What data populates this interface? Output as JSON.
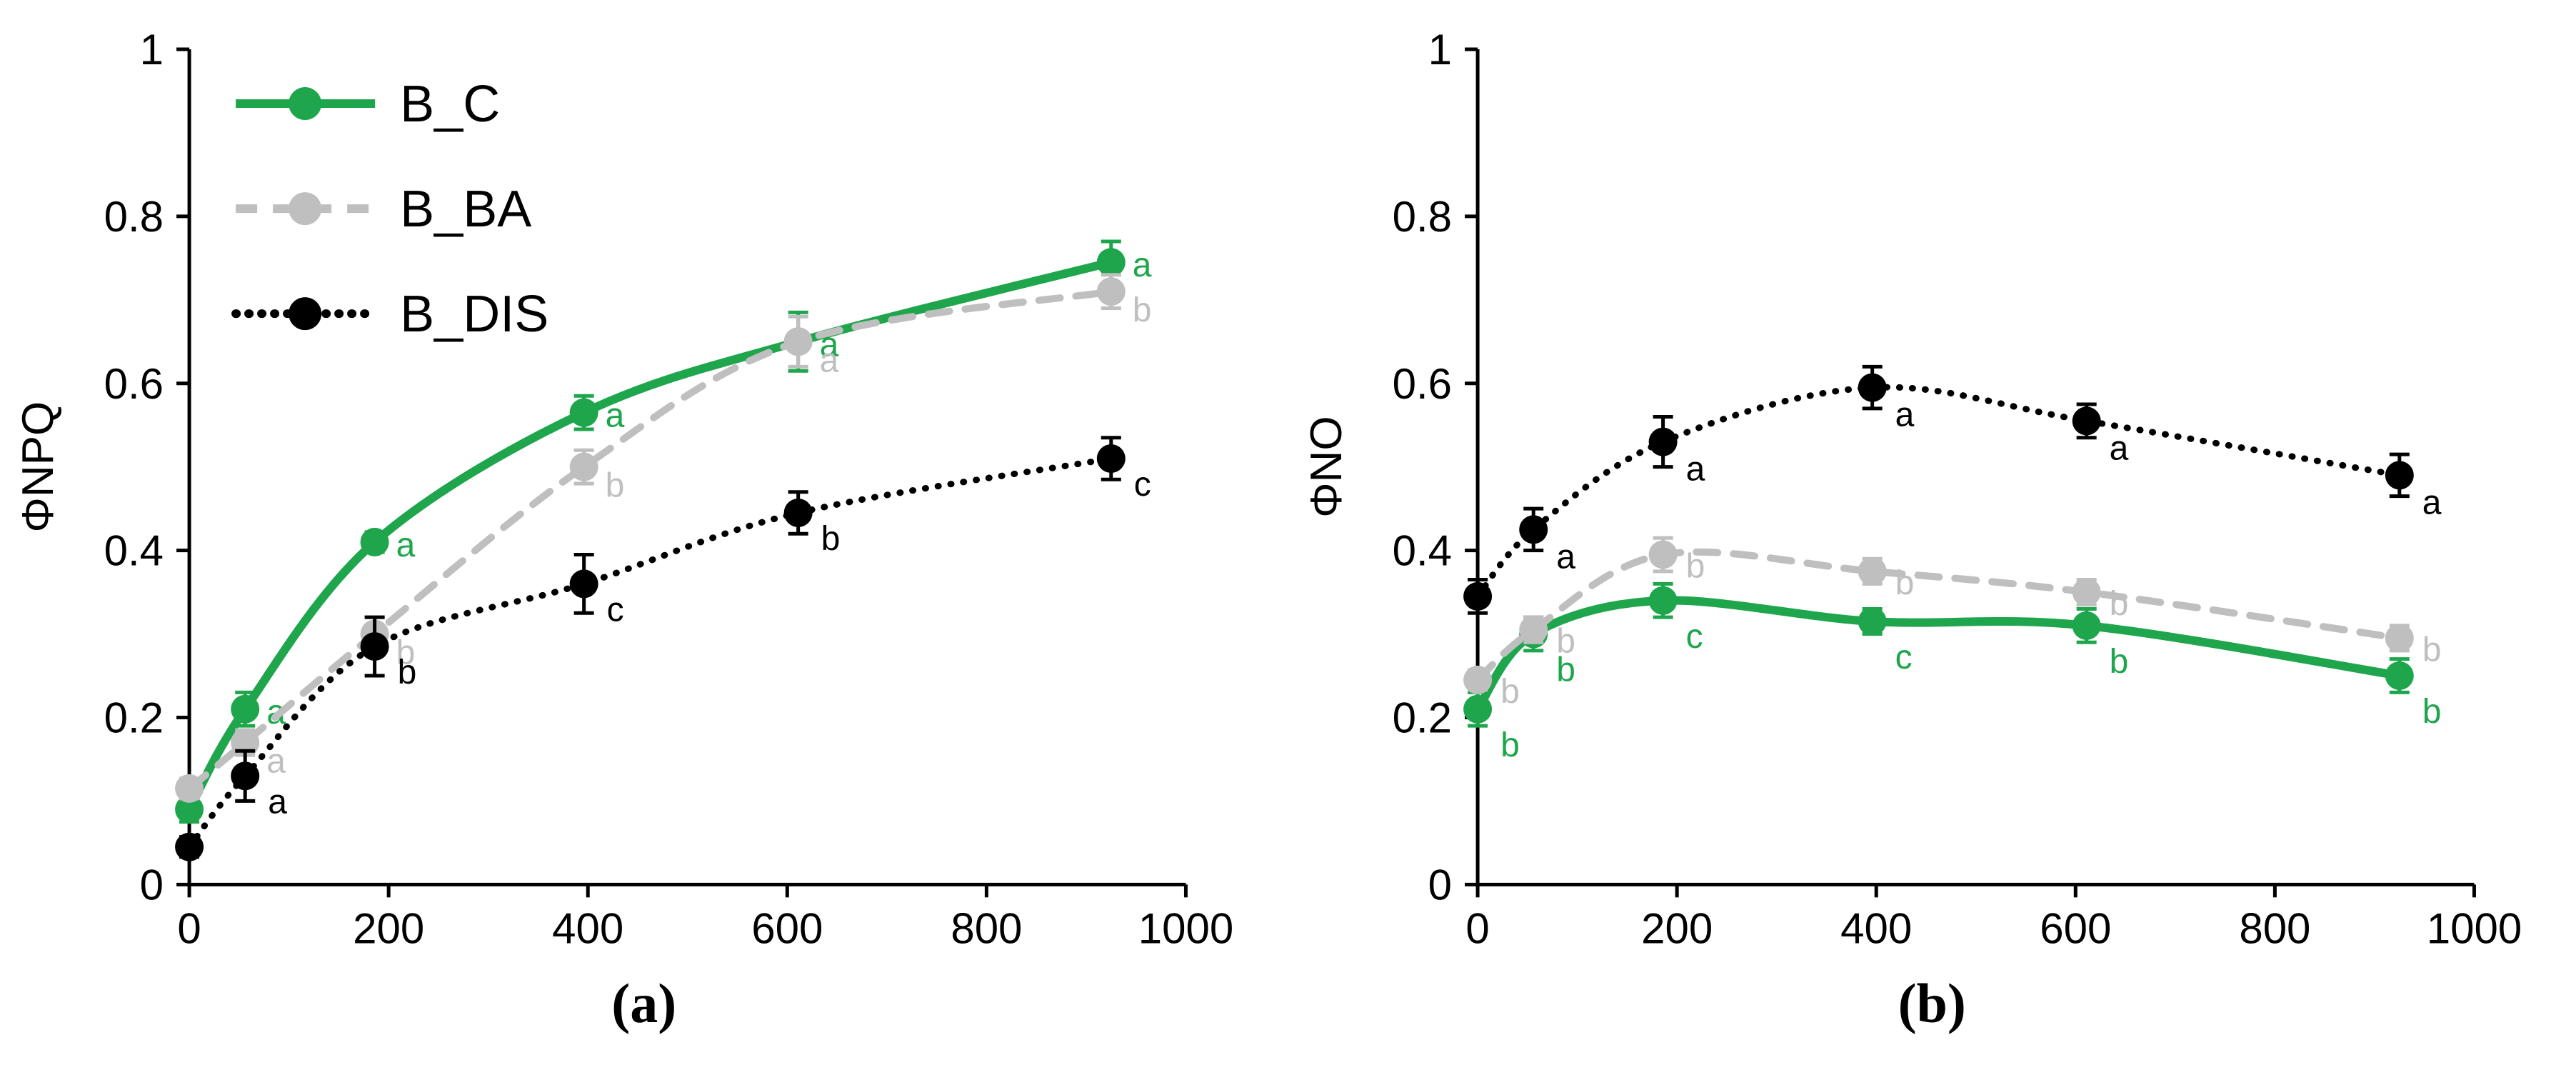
{
  "figure": {
    "background": "#ffffff",
    "axis_color": "#000000"
  },
  "chart_data": [
    {
      "id": "a",
      "caption": "(a)",
      "type": "line",
      "title": "",
      "xlabel": "",
      "ylabel": "ΦNPQ",
      "xlim": [
        0,
        1000
      ],
      "ylim": [
        0,
        1
      ],
      "xticks": [
        0,
        200,
        400,
        600,
        800,
        1000
      ],
      "yticks": [
        0,
        0.2,
        0.4,
        0.6,
        0.8,
        1
      ],
      "grid": false,
      "legend": {
        "show": true,
        "position": "top-left"
      },
      "x": [
        0,
        56,
        186,
        396,
        611,
        925
      ],
      "series": [
        {
          "name": "B_C",
          "color": "#1fa64d",
          "dash": "solid",
          "label_dx": 30,
          "label_dy": 20,
          "values": [
            0.09,
            0.21,
            0.41,
            0.565,
            0.65,
            0.745
          ],
          "errors": [
            0.015,
            0.02,
            0.012,
            0.02,
            0.035,
            0.025
          ],
          "point_labels": [
            "",
            "a",
            "a",
            "a",
            "a",
            "a"
          ]
        },
        {
          "name": "B_BA",
          "color": "#bfbfbf",
          "dash": "dashed",
          "label_dx": 30,
          "label_dy": 42,
          "values": [
            0.115,
            0.17,
            0.3,
            0.5,
            0.65,
            0.71
          ],
          "errors": [
            0.012,
            0.015,
            0.02,
            0.02,
            0.03,
            0.02
          ],
          "point_labels": [
            "",
            "a",
            "b",
            "b",
            "a",
            "b"
          ]
        },
        {
          "name": "B_DIS",
          "color": "#000000",
          "dash": "dotted",
          "label_dx": 32,
          "label_dy": 52,
          "values": [
            0.045,
            0.13,
            0.285,
            0.36,
            0.445,
            0.51
          ],
          "errors": [
            0.012,
            0.03,
            0.035,
            0.035,
            0.025,
            0.025
          ],
          "point_labels": [
            "",
            "a",
            "b",
            "c",
            "b",
            "c"
          ]
        }
      ]
    },
    {
      "id": "b",
      "caption": "(b)",
      "type": "line",
      "title": "",
      "xlabel": "",
      "ylabel": "ΦNO",
      "xlim": [
        0,
        1000
      ],
      "ylim": [
        0,
        1
      ],
      "xticks": [
        0,
        200,
        400,
        600,
        800,
        1000
      ],
      "yticks": [
        0,
        0.2,
        0.4,
        0.6,
        0.8,
        1
      ],
      "grid": false,
      "legend": {
        "show": false,
        "position": "none"
      },
      "x": [
        0,
        56,
        186,
        396,
        611,
        925
      ],
      "series": [
        {
          "name": "B_C",
          "color": "#1fa64d",
          "dash": "solid",
          "label_dx": 32,
          "label_dy": 66,
          "values": [
            0.21,
            0.3,
            0.34,
            0.315,
            0.31,
            0.25
          ],
          "errors": [
            0.02,
            0.02,
            0.02,
            0.015,
            0.02,
            0.02
          ],
          "point_labels": [
            "b",
            "b",
            "c",
            "c",
            "b",
            "b"
          ]
        },
        {
          "name": "B_BA",
          "color": "#bfbfbf",
          "dash": "dashed",
          "label_dx": 32,
          "label_dy": 32,
          "values": [
            0.245,
            0.305,
            0.395,
            0.375,
            0.35,
            0.295
          ],
          "errors": [
            0.012,
            0.015,
            0.02,
            0.015,
            0.015,
            0.015
          ],
          "point_labels": [
            "b",
            "b",
            "b",
            "b",
            "b",
            "b"
          ]
        },
        {
          "name": "B_DIS",
          "color": "#000000",
          "dash": "dotted",
          "label_dx": 32,
          "label_dy": 54,
          "values": [
            0.345,
            0.425,
            0.53,
            0.595,
            0.555,
            0.49
          ],
          "errors": [
            0.02,
            0.025,
            0.03,
            0.025,
            0.02,
            0.025
          ],
          "point_labels": [
            "",
            "a",
            "a",
            "a",
            "a",
            "a"
          ]
        }
      ]
    }
  ]
}
